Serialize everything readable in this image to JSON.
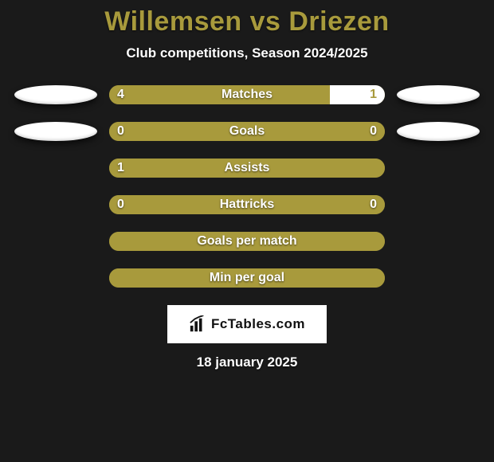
{
  "colors": {
    "background": "#1a1a1a",
    "accent": "#a89a3c",
    "white": "#ffffff",
    "text_shadow": "rgba(0,0,0,0.6)"
  },
  "header": {
    "title": "Willemsen vs Driezen",
    "subtitle": "Club competitions, Season 2024/2025"
  },
  "rows": [
    {
      "label": "Matches",
      "left_val": "4",
      "right_val": "1",
      "left_pct": 80,
      "right_pct": 20,
      "show_left_badge": true,
      "show_right_badge": true
    },
    {
      "label": "Goals",
      "left_val": "0",
      "right_val": "0",
      "left_pct": 100,
      "right_pct": 0,
      "show_left_badge": true,
      "show_right_badge": true
    },
    {
      "label": "Assists",
      "left_val": "1",
      "right_val": "",
      "left_pct": 100,
      "right_pct": 0,
      "show_left_badge": false,
      "show_right_badge": false
    },
    {
      "label": "Hattricks",
      "left_val": "0",
      "right_val": "0",
      "left_pct": 100,
      "right_pct": 0,
      "show_left_badge": false,
      "show_right_badge": false
    },
    {
      "label": "Goals per match",
      "left_val": "",
      "right_val": "",
      "left_pct": 100,
      "right_pct": 0,
      "show_left_badge": false,
      "show_right_badge": false
    },
    {
      "label": "Min per goal",
      "left_val": "",
      "right_val": "",
      "left_pct": 100,
      "right_pct": 0,
      "show_left_badge": false,
      "show_right_badge": false
    }
  ],
  "logo": {
    "text": "FcTables.com"
  },
  "footer": {
    "date": "18 january 2025"
  }
}
